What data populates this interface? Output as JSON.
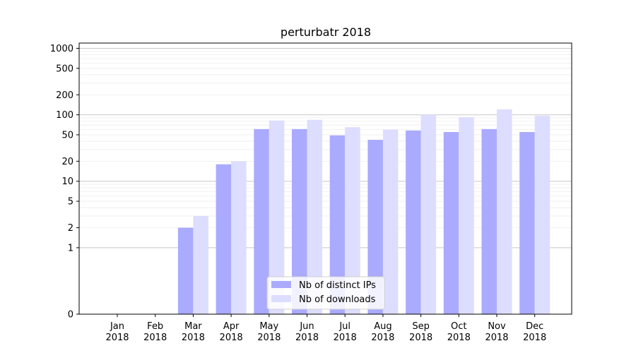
{
  "chart_data": {
    "type": "bar",
    "title": "perturbatr 2018",
    "xlabel": "",
    "ylabel": "",
    "yscale": "symlog",
    "categories": [
      "Jan\n2018",
      "Feb\n2018",
      "Mar\n2018",
      "Apr\n2018",
      "May\n2018",
      "Jun\n2018",
      "Jul\n2018",
      "Aug\n2018",
      "Sep\n2018",
      "Oct\n2018",
      "Nov\n2018",
      "Dec\n2018"
    ],
    "series": [
      {
        "name": "Nb of distinct IPs",
        "color": "#aaaaff",
        "values": [
          0,
          0,
          2,
          18,
          61,
          61,
          49,
          42,
          58,
          55,
          61,
          55
        ]
      },
      {
        "name": "Nb of downloads",
        "color": "#ddddff",
        "values": [
          0,
          0,
          3,
          20,
          82,
          84,
          65,
          60,
          100,
          92,
          121,
          97
        ]
      }
    ],
    "ylim": [
      0,
      1200
    ],
    "yticks": [
      0,
      1,
      2,
      5,
      10,
      20,
      50,
      100,
      200,
      500,
      1000
    ],
    "ytick_labels": [
      "0",
      "1",
      "2",
      "5",
      "10",
      "20",
      "50",
      "100",
      "200",
      "500",
      "1000"
    ],
    "grid": true,
    "legend_position": "bottom-center"
  }
}
